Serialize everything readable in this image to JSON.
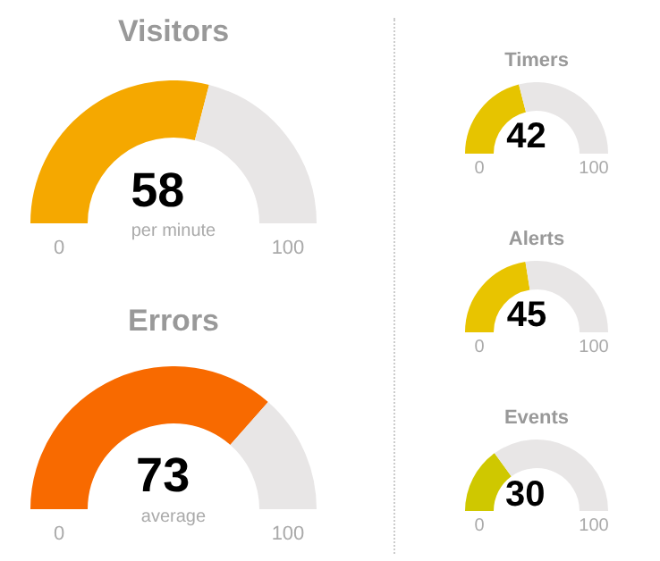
{
  "chart_data": [
    {
      "type": "donut",
      "title": "Visitors",
      "subtitle": "per minute",
      "categories": [
        null,
        null
      ],
      "values": [
        58,
        42
      ],
      "colors": [
        "#f5a800",
        "#e8e6e6"
      ],
      "value_labels": [
        "58",
        null
      ],
      "annotations": [
        "0",
        "100"
      ]
    },
    {
      "type": "donut",
      "title": "Errors",
      "subtitle": "average",
      "categories": [
        null,
        null
      ],
      "values": [
        73,
        27
      ],
      "colors": [
        "#f86a00",
        "#e8e6e6"
      ],
      "value_labels": [
        "73",
        null
      ],
      "annotations": [
        "0",
        "100"
      ]
    },
    {
      "type": "donut",
      "title": "Timers",
      "categories": [
        null,
        null
      ],
      "values": [
        42,
        58
      ],
      "colors": [
        "#e6c400",
        "#e8e6e6"
      ],
      "value_labels": [
        "42",
        null
      ],
      "annotations": [
        "0",
        "100"
      ]
    },
    {
      "type": "donut",
      "title": "Alerts",
      "categories": [
        null,
        null
      ],
      "values": [
        45,
        55
      ],
      "colors": [
        "#e8c400",
        "#e8e6e6"
      ],
      "value_labels": [
        "45",
        null
      ],
      "annotations": [
        "0",
        "100"
      ]
    },
    {
      "type": "donut",
      "title": "Events",
      "categories": [
        null,
        null
      ],
      "values": [
        30,
        70
      ],
      "colors": [
        "#cfc800",
        "#e8e6e6"
      ],
      "value_labels": [
        "30",
        null
      ],
      "annotations": [
        "0",
        "100"
      ]
    }
  ]
}
